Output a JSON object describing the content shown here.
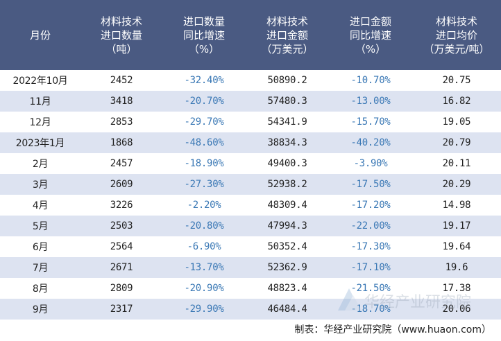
{
  "headers": [
    "月份",
    "材料技术\n进口数量\n（吨）",
    "进口数量\n同比增速\n（%）",
    "材料技术\n进口金额\n（万美元）",
    "进口金额\n同比增速\n（%）",
    "材料技术\n进口均价\n（万美元/吨）"
  ],
  "rows": [
    [
      "2022年10月",
      "2452",
      "-32.40%",
      "50890.2",
      "-10.70%",
      "20.75"
    ],
    [
      "11月",
      "3418",
      "-20.70%",
      "57480.3",
      "-13.00%",
      "16.82"
    ],
    [
      "12月",
      "2853",
      "-29.70%",
      "54341.9",
      "-15.70%",
      "19.05"
    ],
    [
      "2023年1月",
      "1868",
      "-48.60%",
      "38834.3",
      "-40.20%",
      "20.79"
    ],
    [
      "2月",
      "2457",
      "-18.90%",
      "49400.3",
      "-3.90%",
      "20.11"
    ],
    [
      "3月",
      "2609",
      "-27.30%",
      "52938.2",
      "-17.50%",
      "20.29"
    ],
    [
      "4月",
      "3226",
      "-2.20%",
      "48309.4",
      "-17.20%",
      "14.98"
    ],
    [
      "5月",
      "2503",
      "-20.80%",
      "47994.3",
      "-22.00%",
      "19.17"
    ],
    [
      "6月",
      "2564",
      "-6.90%",
      "50352.4",
      "-17.30%",
      "19.64"
    ],
    [
      "7月",
      "2671",
      "-13.70%",
      "52362.9",
      "-17.10%",
      "19.6"
    ],
    [
      "8月",
      "2809",
      "-20.90%",
      "48823.4",
      "-21.50%",
      "17.38"
    ],
    [
      "9月",
      "2317",
      "-29.90%",
      "46484.4",
      "-18.70%",
      "20.06"
    ]
  ],
  "footer": "制表：华经产业研究院（www.huaon.com）",
  "watermark": "华经产业研究院",
  "colors": {
    "header_bg": "#4a5a82",
    "alt_row": "#dde3f1",
    "negative": "#3a78b5"
  }
}
